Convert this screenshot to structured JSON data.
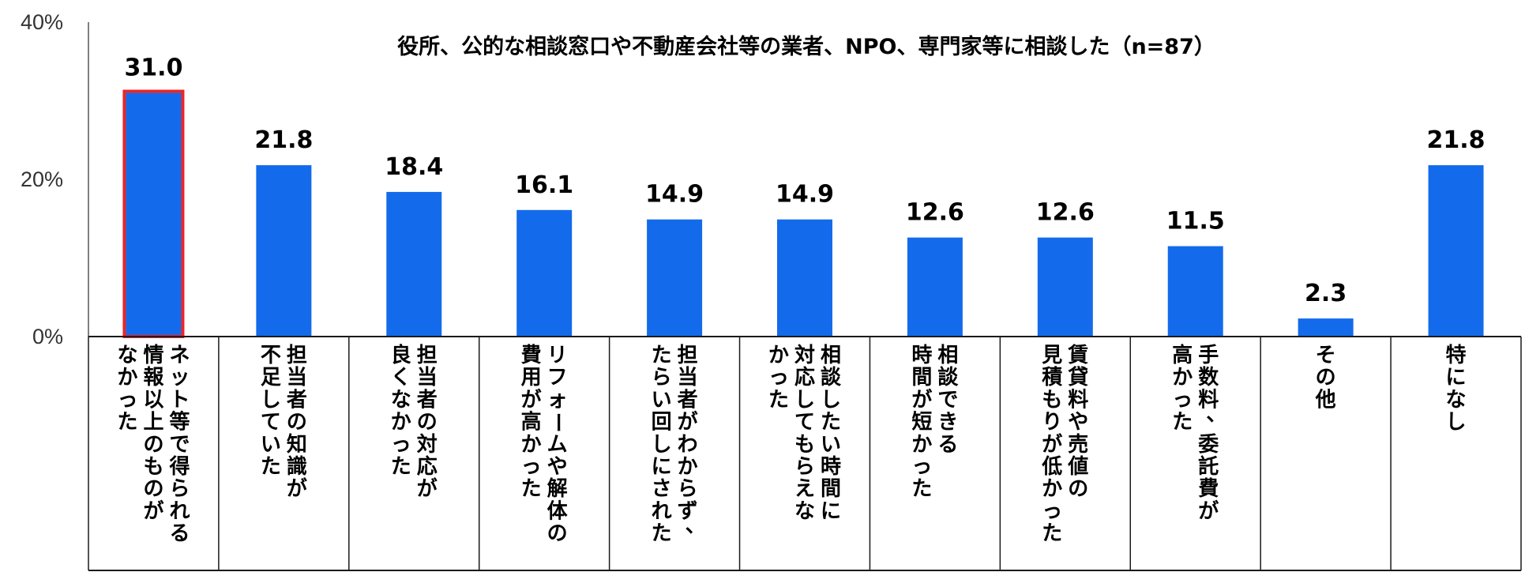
{
  "chart_data": {
    "type": "bar",
    "title": "役所、公的な相談窓口や不動産会社等の業者、NPO、専門家等に相談した（n=87）",
    "xlabel": "",
    "ylabel": "",
    "ylim": [
      0,
      40
    ],
    "yticks": [
      "0%",
      "20%",
      "40%"
    ],
    "ytick_values": [
      0,
      20,
      40
    ],
    "grid": false,
    "categories": [
      "ネット等で得られる情報以上のものがなかった",
      "担当者の知識が不足していた",
      "担当者の対応が良くなかった",
      "リフォームや解体の費用が高かった",
      "担当者がわからず、たらい回しにされた",
      "相談したい時間に対応してもらえなかった",
      "相談できる時間が短かった",
      "賃貸料や売値の見積もりが低かった",
      "手数料、委託費が高かった",
      "その他",
      "特になし"
    ],
    "category_lines": [
      [
        "ネット等で得られる",
        "情報以上のものが",
        "なかった"
      ],
      [
        "担当者の知識が",
        "不足していた"
      ],
      [
        "担当者の対応が",
        "良くなかった"
      ],
      [
        "リフォームや解体の",
        "費用が高かった"
      ],
      [
        "担当者がわからず、",
        "たらい回しにされた"
      ],
      [
        "相談したい時間に",
        "対応してもらえな",
        "かった"
      ],
      [
        "相談できる",
        "時間が短かった"
      ],
      [
        "賃貸料や売値の",
        "見積もりが低かった"
      ],
      [
        "手数料、委託費が",
        "高かった"
      ],
      [
        "その他"
      ],
      [
        "特になし"
      ]
    ],
    "values": [
      31.0,
      21.8,
      18.4,
      16.1,
      14.9,
      14.9,
      12.6,
      12.6,
      11.5,
      2.3,
      21.8
    ],
    "value_labels": [
      "31.0",
      "21.8",
      "18.4",
      "16.1",
      "14.9",
      "14.9",
      "12.6",
      "12.6",
      "11.5",
      "2.3",
      "21.8"
    ],
    "highlight_index": 0,
    "colors": {
      "bar": "#136BEB",
      "highlight_border": "#E8262A",
      "axis": "#808080",
      "table_border": "#1A1A1A"
    }
  }
}
